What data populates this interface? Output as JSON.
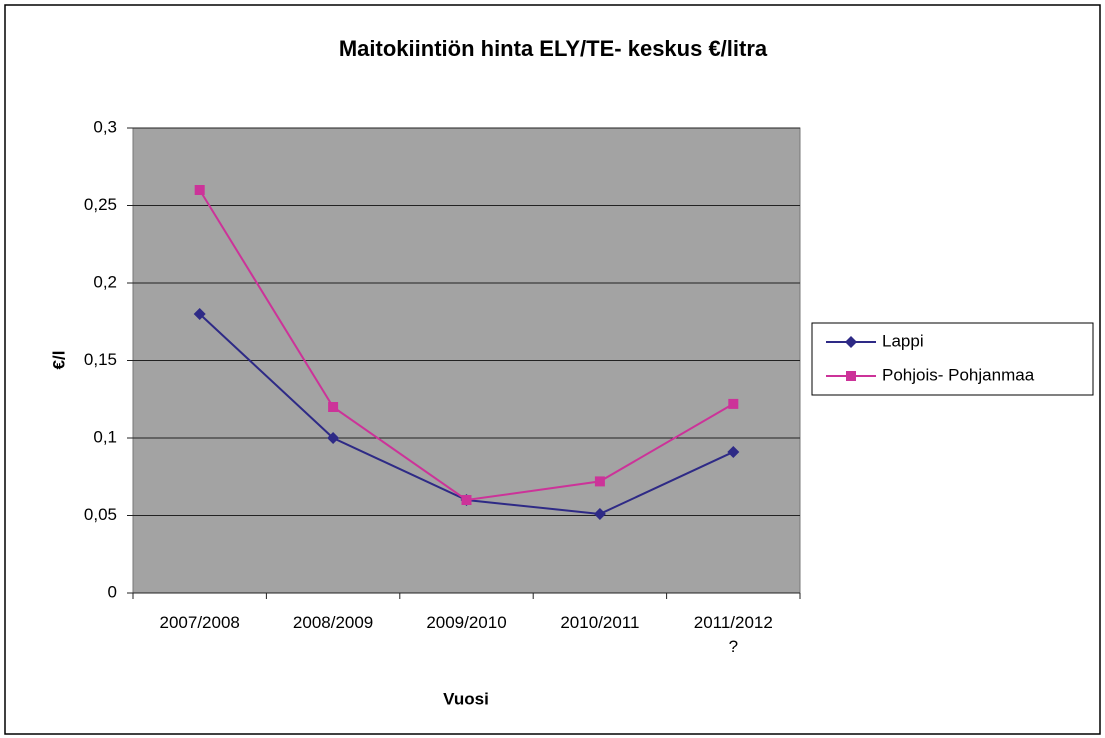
{
  "chart_data": {
    "type": "line",
    "title": "Maitokiintiön hinta ELY/TE- keskus €/litra",
    "x_label": "Vuosi",
    "y_label": "€/l",
    "categories": [
      "2007/2008",
      "2008/2009",
      "2009/2010",
      "2010/2011",
      "2011/2012\n?"
    ],
    "series": [
      {
        "name": "Lappi",
        "color": "#2e2a86",
        "marker": "diamond",
        "values": [
          0.18,
          0.1,
          0.06,
          0.051,
          0.091
        ]
      },
      {
        "name": "Pohjois- Pohjanmaa",
        "color": "#cc3399",
        "marker": "square",
        "values": [
          0.26,
          0.12,
          0.06,
          0.072,
          0.122
        ]
      }
    ],
    "ylim": [
      0,
      0.3
    ],
    "yticks": [
      0,
      {
        "value": 0.05,
        "label": "0,05"
      },
      {
        "value": 0.1,
        "label": "0,1"
      },
      {
        "value": 0.15,
        "label": "0,15"
      },
      {
        "value": 0.2,
        "label": "0,2"
      },
      {
        "value": 0.25,
        "label": "0,25"
      },
      {
        "value": 0.3,
        "label": "0,3"
      }
    ],
    "grid": true,
    "legend": "right"
  }
}
